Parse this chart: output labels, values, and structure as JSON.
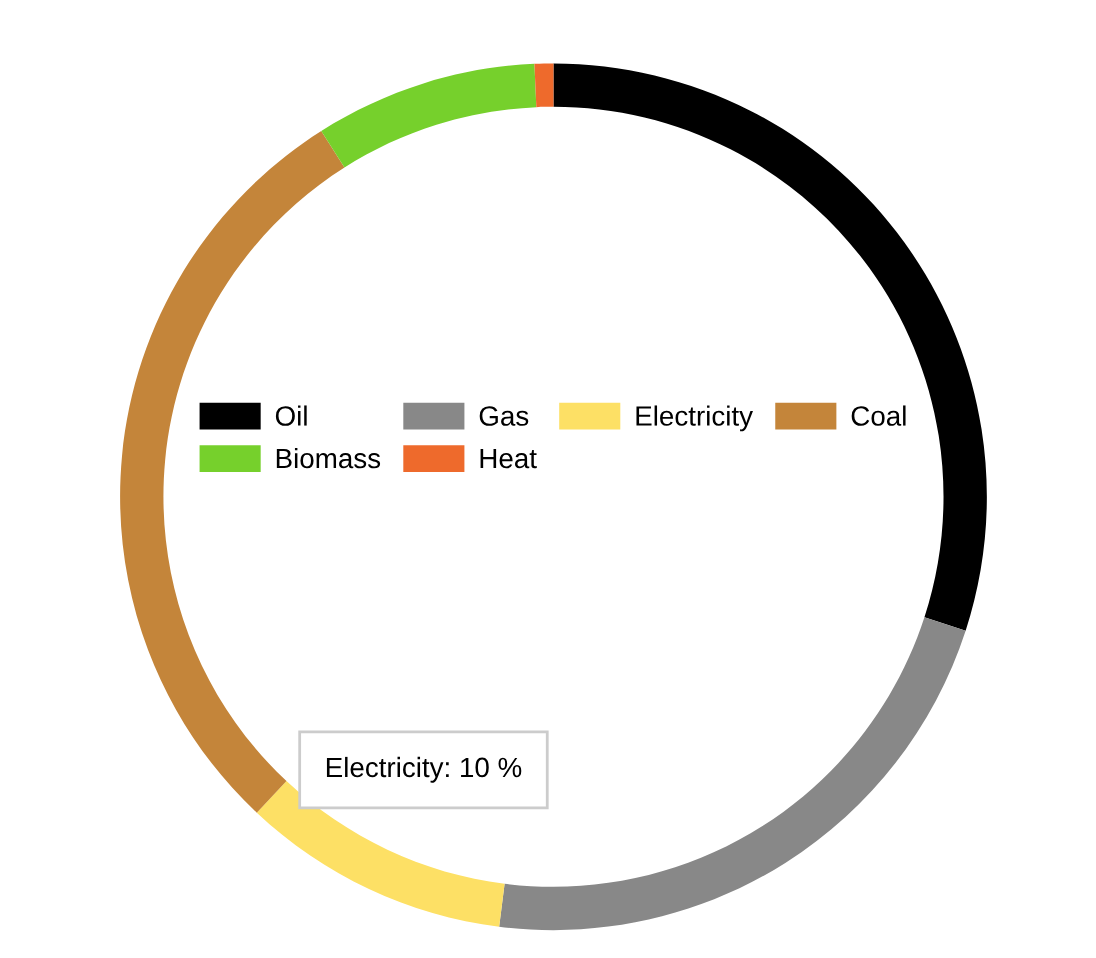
{
  "chart_data": {
    "type": "donut",
    "categories": [
      "Oil",
      "Gas",
      "Electricity",
      "Coal",
      "Biomass",
      "Heat"
    ],
    "values": [
      30,
      22,
      10,
      29,
      8.3,
      0.7
    ],
    "colors": [
      "#000000",
      "#888888",
      "#fde065",
      "#c4853a",
      "#76d02c",
      "#ee6a2c"
    ],
    "legend": "center",
    "annotations": [
      "Electricity: 10 %"
    ]
  }
}
